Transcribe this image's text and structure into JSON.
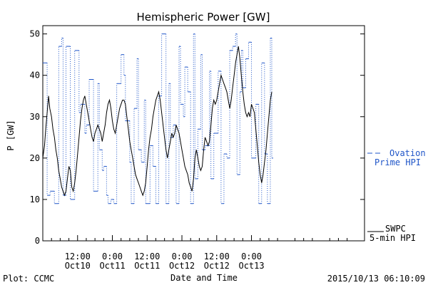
{
  "chart_data": {
    "type": "line",
    "title": "Hemispheric Power [GW]",
    "ylabel": "P [GW]",
    "xlabel": "Date and Time",
    "ylim": [
      0,
      52
    ],
    "xlim": [
      0,
      111
    ],
    "yticks": [
      0,
      10,
      20,
      30,
      40,
      50
    ],
    "xticks": [
      {
        "x": 12,
        "line1": "12:00",
        "line2": "Oct10"
      },
      {
        "x": 24,
        "line1": "0:00",
        "line2": "Oct11"
      },
      {
        "x": 36,
        "line1": "12:00",
        "line2": "Oct11"
      },
      {
        "x": 48,
        "line1": "0:00",
        "line2": "Oct12"
      },
      {
        "x": 60,
        "line1": "12:00",
        "line2": "Oct12"
      },
      {
        "x": 72,
        "line1": "0:00",
        "line2": "Oct13"
      }
    ],
    "grid": false,
    "series": [
      {
        "name_line1": "SWPC",
        "name_line2": "5-min HPI",
        "color": "#000000",
        "style": "solid",
        "points": [
          [
            0,
            20
          ],
          [
            0.6,
            23
          ],
          [
            1,
            27
          ],
          [
            1.5,
            31
          ],
          [
            2,
            35
          ],
          [
            2.4,
            32
          ],
          [
            3,
            30
          ],
          [
            3.5,
            27
          ],
          [
            4,
            25
          ],
          [
            4.5,
            22
          ],
          [
            5,
            20
          ],
          [
            5.5,
            17
          ],
          [
            6,
            15
          ],
          [
            6.5,
            13
          ],
          [
            7,
            12
          ],
          [
            7.5,
            11
          ],
          [
            8,
            12
          ],
          [
            8.5,
            15
          ],
          [
            9,
            18
          ],
          [
            9.5,
            17
          ],
          [
            10,
            13
          ],
          [
            10.5,
            12
          ],
          [
            11,
            14
          ],
          [
            11.5,
            17
          ],
          [
            12,
            21
          ],
          [
            12.5,
            25
          ],
          [
            13,
            29
          ],
          [
            13.5,
            32
          ],
          [
            14,
            34
          ],
          [
            14.5,
            35
          ],
          [
            15,
            33
          ],
          [
            15.5,
            31
          ],
          [
            16,
            29
          ],
          [
            16.5,
            27
          ],
          [
            17,
            25
          ],
          [
            17.5,
            24
          ],
          [
            18,
            26
          ],
          [
            18.5,
            27
          ],
          [
            19,
            28
          ],
          [
            19.5,
            27
          ],
          [
            20,
            26
          ],
          [
            20.5,
            24
          ],
          [
            21,
            26
          ],
          [
            21.5,
            28
          ],
          [
            22,
            31
          ],
          [
            22.5,
            33
          ],
          [
            23,
            34
          ],
          [
            23.5,
            32
          ],
          [
            24,
            29
          ],
          [
            24.5,
            27
          ],
          [
            25,
            26
          ],
          [
            25.5,
            28
          ],
          [
            26,
            30
          ],
          [
            26.5,
            32
          ],
          [
            27,
            33
          ],
          [
            27.5,
            34
          ],
          [
            28,
            34
          ],
          [
            28.5,
            33
          ],
          [
            29,
            30
          ],
          [
            29.5,
            27
          ],
          [
            30,
            24
          ],
          [
            30.5,
            22
          ],
          [
            31,
            20
          ],
          [
            31.5,
            18
          ],
          [
            32,
            16
          ],
          [
            32.5,
            15
          ],
          [
            33,
            14
          ],
          [
            33.5,
            13
          ],
          [
            34,
            12
          ],
          [
            34.5,
            11
          ],
          [
            35,
            12
          ],
          [
            35.5,
            14
          ],
          [
            36,
            18
          ],
          [
            36.5,
            22
          ],
          [
            37,
            25
          ],
          [
            37.5,
            27
          ],
          [
            38,
            30
          ],
          [
            38.5,
            32
          ],
          [
            39,
            34
          ],
          [
            39.5,
            35
          ],
          [
            40,
            36
          ],
          [
            40.5,
            34
          ],
          [
            41,
            31
          ],
          [
            41.5,
            28
          ],
          [
            42,
            25
          ],
          [
            42.5,
            22
          ],
          [
            43,
            20
          ],
          [
            43.5,
            22
          ],
          [
            44,
            24
          ],
          [
            44.5,
            26
          ],
          [
            45,
            25
          ],
          [
            45.5,
            26
          ],
          [
            46,
            28
          ],
          [
            46.5,
            27
          ],
          [
            47,
            26
          ],
          [
            47.5,
            24
          ],
          [
            48,
            22
          ],
          [
            48.5,
            20
          ],
          [
            49,
            18
          ],
          [
            49.5,
            17
          ],
          [
            50,
            16
          ],
          [
            50.5,
            14
          ],
          [
            51,
            13
          ],
          [
            51.5,
            12
          ],
          [
            52,
            15
          ],
          [
            52.5,
            20
          ],
          [
            53,
            22
          ],
          [
            53.5,
            20
          ],
          [
            54,
            18
          ],
          [
            54.5,
            17
          ],
          [
            55,
            18
          ],
          [
            55.5,
            22
          ],
          [
            56,
            25
          ],
          [
            56.5,
            24
          ],
          [
            57,
            23
          ],
          [
            57.5,
            24
          ],
          [
            58,
            28
          ],
          [
            58.5,
            32
          ],
          [
            59,
            34
          ],
          [
            59.5,
            33
          ],
          [
            60,
            34
          ],
          [
            60.5,
            36
          ],
          [
            61,
            38
          ],
          [
            61.5,
            40
          ],
          [
            62,
            39
          ],
          [
            62.5,
            38
          ],
          [
            63,
            37
          ],
          [
            63.5,
            36
          ],
          [
            64,
            34
          ],
          [
            64.5,
            32
          ],
          [
            65,
            34
          ],
          [
            65.5,
            37
          ],
          [
            66,
            40
          ],
          [
            66.5,
            43
          ],
          [
            67,
            45
          ],
          [
            67.5,
            47
          ],
          [
            68,
            44
          ],
          [
            68.5,
            40
          ],
          [
            69,
            36
          ],
          [
            69.5,
            33
          ],
          [
            70,
            31
          ],
          [
            70.5,
            30
          ],
          [
            71,
            31
          ],
          [
            71.5,
            30
          ],
          [
            72,
            33
          ],
          [
            72.5,
            32
          ],
          [
            73,
            31
          ],
          [
            73.5,
            27
          ],
          [
            74,
            23
          ],
          [
            74.5,
            19
          ],
          [
            75,
            16
          ],
          [
            75.5,
            14
          ],
          [
            76,
            16
          ],
          [
            76.5,
            19
          ],
          [
            77,
            22
          ],
          [
            77.5,
            26
          ],
          [
            78,
            30
          ],
          [
            78.5,
            34
          ],
          [
            79,
            36
          ]
        ]
      },
      {
        "name_line1": "Ovation",
        "name_line2": "Prime HPI",
        "color": "#1f55c8",
        "style": "dotted-steps",
        "steps": [
          [
            0,
            43
          ],
          [
            1.5,
            11
          ],
          [
            2.5,
            12
          ],
          [
            4,
            9
          ],
          [
            5.5,
            47
          ],
          [
            6.5,
            49
          ],
          [
            7,
            11
          ],
          [
            8,
            47
          ],
          [
            9.5,
            10
          ],
          [
            11,
            46
          ],
          [
            12.5,
            31
          ],
          [
            13,
            33
          ],
          [
            14.5,
            26
          ],
          [
            15,
            28
          ],
          [
            16,
            39
          ],
          [
            17.5,
            12
          ],
          [
            19,
            38
          ],
          [
            19.5,
            22
          ],
          [
            20.5,
            17
          ],
          [
            21,
            18
          ],
          [
            22,
            11
          ],
          [
            22.5,
            9
          ],
          [
            23.5,
            10
          ],
          [
            24.5,
            9
          ],
          [
            25.5,
            38
          ],
          [
            27,
            45
          ],
          [
            28,
            40
          ],
          [
            28.5,
            29
          ],
          [
            30,
            19
          ],
          [
            30.5,
            9
          ],
          [
            31.5,
            32
          ],
          [
            32.5,
            44
          ],
          [
            33,
            22
          ],
          [
            34,
            19
          ],
          [
            35,
            34
          ],
          [
            35.5,
            9
          ],
          [
            37,
            23
          ],
          [
            38,
            18
          ],
          [
            39,
            9
          ],
          [
            40,
            35
          ],
          [
            41,
            50
          ],
          [
            42.5,
            9
          ],
          [
            43.5,
            38
          ],
          [
            44,
            25
          ],
          [
            45,
            28
          ],
          [
            46,
            9
          ],
          [
            47,
            47
          ],
          [
            47.5,
            33
          ],
          [
            48.5,
            30
          ],
          [
            49,
            42
          ],
          [
            50,
            36
          ],
          [
            51,
            9
          ],
          [
            52,
            50
          ],
          [
            52.5,
            15
          ],
          [
            53.5,
            27
          ],
          [
            54.5,
            45
          ],
          [
            55,
            22
          ],
          [
            56,
            23
          ],
          [
            57.5,
            41
          ],
          [
            58,
            15
          ],
          [
            59,
            26
          ],
          [
            60.5,
            41
          ],
          [
            61.5,
            9
          ],
          [
            62.5,
            21
          ],
          [
            63.5,
            20
          ],
          [
            64.5,
            46
          ],
          [
            65.5,
            47
          ],
          [
            66.5,
            50
          ],
          [
            67,
            16
          ],
          [
            68,
            36
          ],
          [
            68.5,
            46
          ],
          [
            69,
            37
          ],
          [
            70,
            44
          ],
          [
            71,
            48
          ],
          [
            72,
            20
          ],
          [
            73.5,
            33
          ],
          [
            74.5,
            9
          ],
          [
            75.5,
            43
          ],
          [
            76.5,
            21
          ],
          [
            77.5,
            9
          ],
          [
            78.5,
            49
          ],
          [
            79,
            20
          ]
        ]
      }
    ]
  },
  "footer": {
    "left": "Plot: CCMC",
    "right": "2015/10/13 06:10:09"
  }
}
